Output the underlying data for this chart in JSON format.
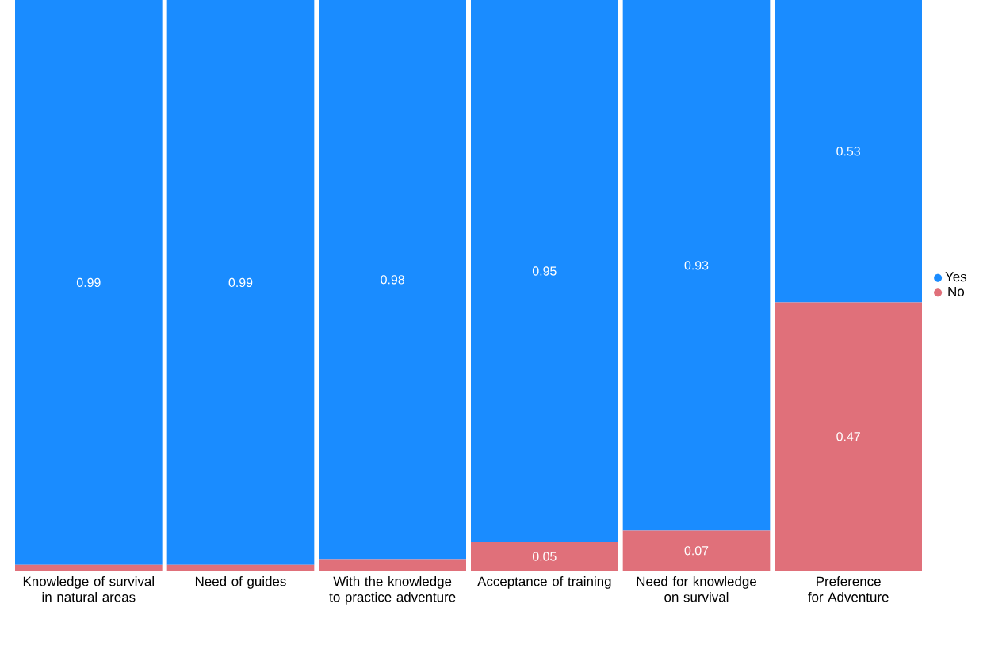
{
  "chart_data": {
    "type": "bar",
    "stacked": true,
    "legend": "right",
    "categories": [
      "Knowledge of survival in natural areas",
      "Need of guides",
      "With the knowledge to practice adventure",
      "Acceptance of training",
      "Need for knowledge on survival",
      "Preference for Adventure"
    ],
    "series": [
      {
        "name": "No",
        "color": "#e0707a",
        "values": [
          0.01,
          0.01,
          0.02,
          0.05,
          0.07,
          0.47
        ],
        "value_labels": [
          null,
          null,
          null,
          "0.05",
          "0.07",
          "0.47"
        ]
      },
      {
        "name": "Yes",
        "color": "#1a8cff",
        "values": [
          0.99,
          0.99,
          0.98,
          0.95,
          0.93,
          0.53
        ],
        "value_labels": [
          "0.99",
          "0.99",
          "0.98",
          "0.95",
          "0.93",
          "0.53"
        ]
      }
    ]
  }
}
